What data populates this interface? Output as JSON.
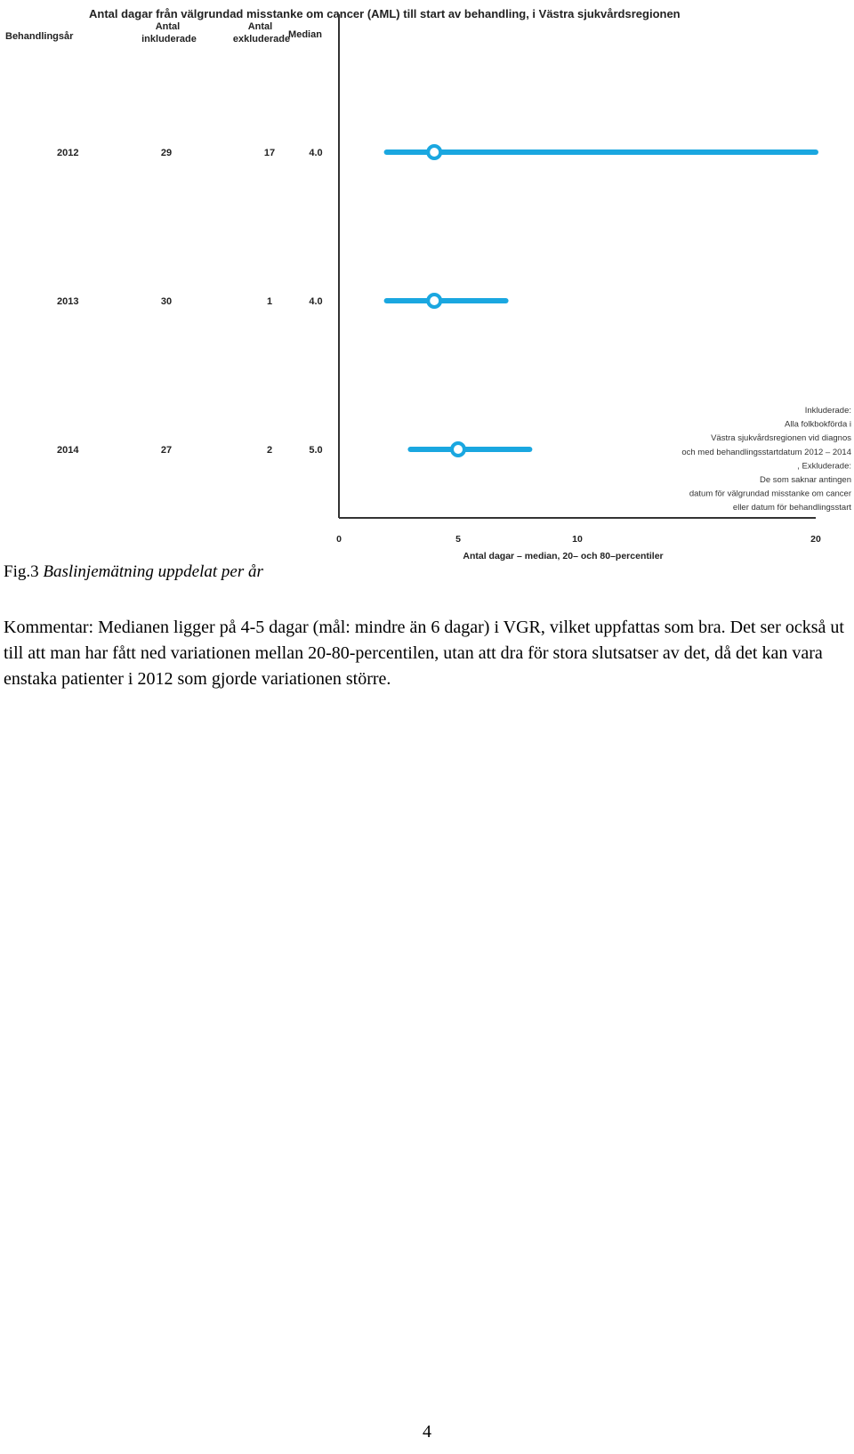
{
  "chart_data": {
    "type": "forest",
    "title": "Antal dagar från välgrundad misstanke om cancer (AML) till start av behandling, i Västra sjukvårdsregionen",
    "xlabel": "Antal dagar – median, 20– och 80–percentiler",
    "xlim": [
      0,
      20
    ],
    "x_ticks": [
      "0",
      "5",
      "10",
      "20"
    ],
    "grid": false,
    "columns": [
      "Behandlingsår",
      "Antal inkluderade",
      "Antal exkluderade",
      "Median"
    ],
    "rows": [
      {
        "year": "2012",
        "included": "29",
        "excluded": "17",
        "median_label": "4.0",
        "median": 4.0,
        "p20": 2.0,
        "p80": 20.0
      },
      {
        "year": "2013",
        "included": "30",
        "excluded": "1",
        "median_label": "4.0",
        "median": 4.0,
        "p20": 2.0,
        "p80": 7.0
      },
      {
        "year": "2014",
        "included": "27",
        "excluded": "2",
        "median_label": "5.0",
        "median": 5.0,
        "p20": 3.0,
        "p80": 8.0
      }
    ],
    "note_lines": [
      "Inkluderade:",
      "Alla folkbokförda i",
      "Västra sjukvårdsregionen vid diagnos",
      "och med behandlingsstartdatum 2012 – 2014",
      ", Exkluderade:",
      "De som saknar antingen",
      "datum för välgrundad misstanke om cancer",
      "eller datum för behandlingsstart"
    ],
    "color": "#1aa7e0"
  },
  "caption": {
    "prefix": "Fig.3 ",
    "italic": "Baslinjemätning uppdelat per år"
  },
  "comment": "Kommentar: Medianen ligger på 4-5 dagar (mål: mindre än 6 dagar) i VGR, vilket uppfattas som bra. Det ser också ut till att man har fått ned variationen mellan 20-80-percentilen, utan att dra för stora slutsatser av det, då det kan vara enstaka patienter i 2012 som gjorde variationen större.",
  "page_number": "4"
}
